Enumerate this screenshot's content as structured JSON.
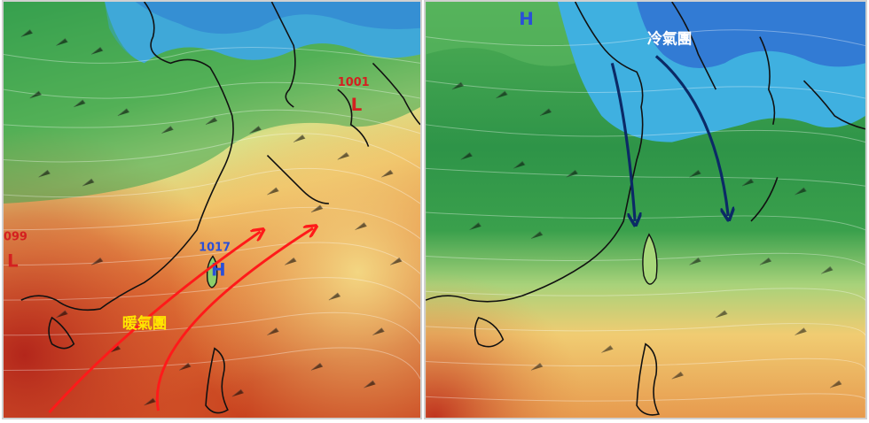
{
  "left_map": {
    "pressure_labels": {
      "low_north_value": "1001",
      "low_north_symbol": "L",
      "high_value": "1017",
      "high_symbol": "H",
      "low_west_value": "099",
      "low_west_symbol": "L"
    },
    "annotation": "暖氣團",
    "colors": {
      "warm_arrow": "#ff1a1a",
      "annotation_text": "#ffe600",
      "low_label": "#d42020",
      "high_label": "#2a4fd8"
    }
  },
  "right_map": {
    "pressure_labels": {
      "high_symbol": "H"
    },
    "annotation": "冷氣團",
    "colors": {
      "cold_arrow": "#0b2a66",
      "annotation_text": "#ffffff",
      "high_label": "#2a4fd8"
    }
  }
}
